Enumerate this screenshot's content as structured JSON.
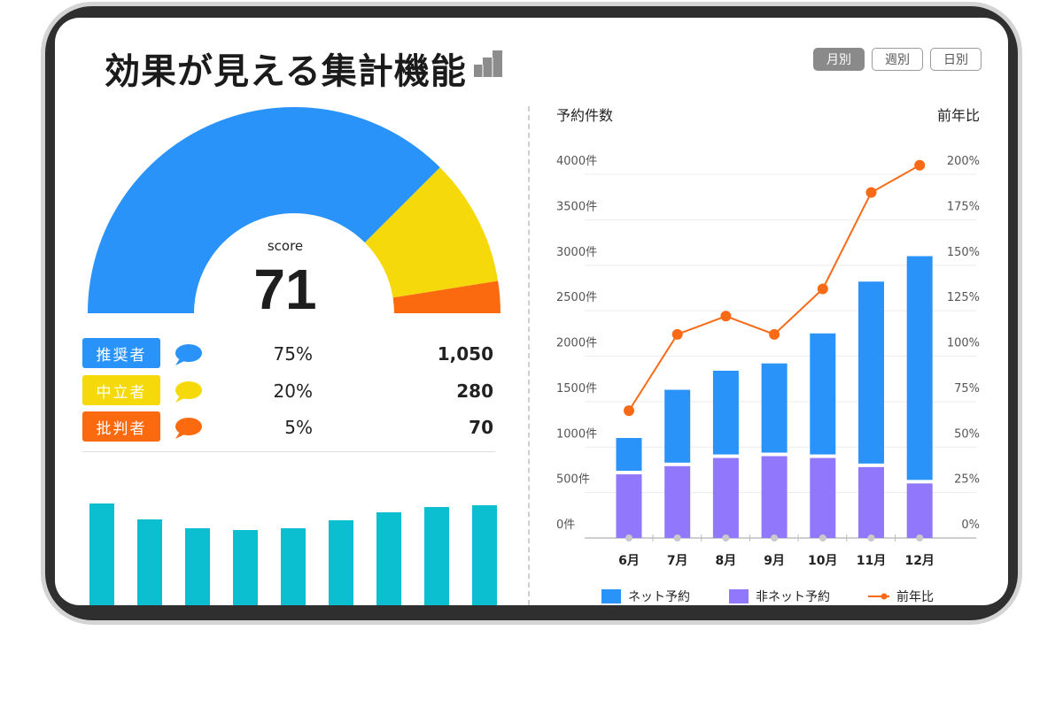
{
  "header": {
    "title": "効果が見える集計機能"
  },
  "tabs": [
    {
      "label": "月別",
      "active": true
    },
    {
      "label": "週別",
      "active": false
    },
    {
      "label": "日別",
      "active": false
    }
  ],
  "score": {
    "label": "score",
    "value": "71"
  },
  "nps": [
    {
      "label": "推奨者",
      "percent": "75%",
      "count": "1,050",
      "color": "#2a93f9",
      "fraction": 0.75
    },
    {
      "label": "中立者",
      "percent": "20%",
      "count": "280",
      "color": "#f5d90a",
      "fraction": 0.2
    },
    {
      "label": "批判者",
      "percent": "5%",
      "count": "70",
      "color": "#fc6a10",
      "fraction": 0.05
    }
  ],
  "mini_bar_color": "#0cbfd0",
  "chart_data": {
    "type": "bar",
    "y_left_title": "予約件数",
    "y_right_title": "前年比",
    "categories": [
      "6月",
      "7月",
      "8月",
      "9月",
      "10月",
      "11月",
      "12月"
    ],
    "y_left_ticks": [
      "0件",
      "500件",
      "1000件",
      "1500件",
      "2000件",
      "2500件",
      "3000件",
      "3500件",
      "4000件"
    ],
    "y_right_ticks": [
      "0%",
      "25%",
      "50%",
      "75%",
      "100%",
      "125%",
      "150%",
      "175%",
      "200%"
    ],
    "ylim": [
      0,
      4000
    ],
    "y2lim": [
      0,
      200
    ],
    "series": [
      {
        "name": "非ネット予約",
        "color": "#9177fb",
        "values": [
          700,
          790,
          880,
          900,
          880,
          780,
          600
        ]
      },
      {
        "name": "ネット予約",
        "color": "#2a93f9",
        "values": [
          400,
          840,
          960,
          1020,
          1370,
          2040,
          2500
        ]
      },
      {
        "name": "前年比",
        "color": "#f86a16",
        "type": "line",
        "values": [
          70,
          112,
          122,
          112,
          137,
          190,
          205
        ]
      }
    ],
    "legend": [
      "ネット予約",
      "非ネット予約",
      "前年比"
    ],
    "grid": true
  }
}
